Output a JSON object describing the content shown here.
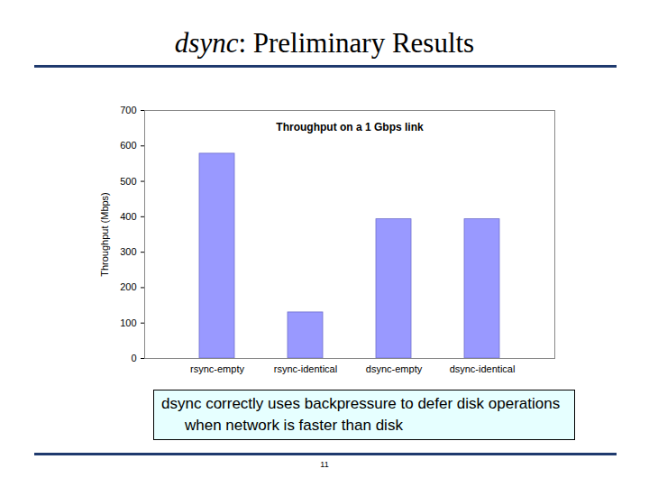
{
  "slide": {
    "title": "dsync: Preliminary Results",
    "caption": "dsync correctly uses backpressure to defer disk operations when network is faster than disk",
    "page": 11
  },
  "chart_data": {
    "type": "bar",
    "title": "Throughput on a 1 Gbps link",
    "y_label": "Throughput (Mbps)",
    "categories": [
      "rsync-empty",
      "rsync-identical",
      "dsync-empty",
      "dsync-identical"
    ],
    "values": [
      578,
      130,
      393,
      393
    ],
    "color": "#9999ff",
    "ylim": [
      0,
      700
    ],
    "yticks": [
      0,
      100,
      200,
      300,
      400,
      500,
      600,
      700
    ],
    "grid": false
  }
}
